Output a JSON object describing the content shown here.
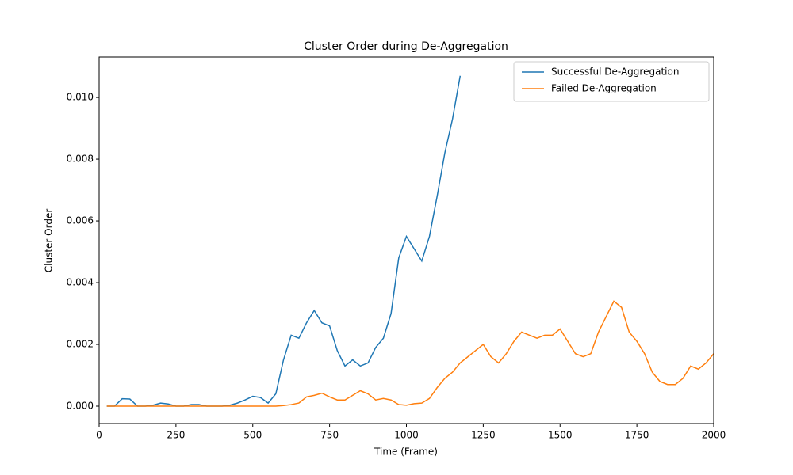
{
  "chart_data": {
    "type": "line",
    "title": "Cluster Order during De-Aggregation",
    "x_label": "Time (Frame)",
    "y_label": "Cluster Order",
    "x": [
      25,
      50,
      75,
      100,
      125,
      150,
      175,
      200,
      225,
      250,
      275,
      300,
      325,
      350,
      375,
      400,
      425,
      450,
      475,
      500,
      525,
      550,
      575,
      600,
      625,
      650,
      675,
      700,
      725,
      750,
      775,
      800,
      825,
      850,
      875,
      900,
      925,
      950,
      975,
      1000,
      1025,
      1050,
      1075,
      1100,
      1125,
      1150,
      1175,
      1200,
      1225,
      1250,
      1275,
      1300,
      1325,
      1350,
      1375,
      1400,
      1425,
      1450,
      1475,
      1500,
      1525,
      1550,
      1575,
      1600,
      1625,
      1650,
      1675,
      1700,
      1725,
      1750,
      1775,
      1800,
      1825,
      1850,
      1875,
      1900,
      1925,
      1950,
      1975,
      2000
    ],
    "series": [
      {
        "name": "Successful De-Aggregation",
        "color": "#1f77b4",
        "values": [
          0,
          0,
          0.00024,
          0.00023,
          0,
          0,
          3e-05,
          0.0001,
          7e-05,
          0,
          0,
          5e-05,
          5e-05,
          0,
          0,
          0,
          3e-05,
          0.0001,
          0.0002,
          0.00032,
          0.00028,
          0.0001,
          0.0004,
          0.0015,
          0.0023,
          0.0022,
          0.0027,
          0.0031,
          0.0027,
          0.0026,
          0.0018,
          0.0013,
          0.0015,
          0.0013,
          0.0014,
          0.0019,
          0.0022,
          0.003,
          0.0048,
          0.0055,
          0.0051,
          0.0047,
          0.0055,
          0.0068,
          0.0082,
          0.0093,
          0.0107,
          null,
          null,
          null,
          null,
          null,
          null,
          null,
          null,
          null,
          null,
          null,
          null,
          null,
          null,
          null,
          null,
          null,
          null,
          null,
          null,
          null,
          null,
          null,
          null,
          null,
          null,
          null,
          null,
          null,
          null,
          null,
          null,
          null
        ]
      },
      {
        "name": "Failed De-Aggregation",
        "color": "#ff7f0e",
        "values": [
          0,
          0,
          0,
          0,
          0,
          0,
          0,
          0,
          0,
          0,
          0,
          0,
          0,
          0,
          0,
          0,
          0,
          0,
          0,
          0,
          0,
          0,
          0,
          2e-05,
          5e-05,
          0.0001,
          0.0003,
          0.00035,
          0.00042,
          0.0003,
          0.0002,
          0.0002,
          0.00035,
          0.0005,
          0.0004,
          0.0002,
          0.00025,
          0.0002,
          5e-05,
          3e-05,
          8e-05,
          0.0001,
          0.00025,
          0.0006,
          0.0009,
          0.0011,
          0.0014,
          0.0016,
          0.0018,
          0.002,
          0.0016,
          0.0014,
          0.0017,
          0.0021,
          0.0024,
          0.0023,
          0.0022,
          0.0023,
          0.0023,
          0.0025,
          0.0021,
          0.0017,
          0.0016,
          0.0017,
          0.0024,
          0.0029,
          0.0034,
          0.0032,
          0.0024,
          0.0021,
          0.0017,
          0.0011,
          0.0008,
          0.0007,
          0.0007,
          0.0009,
          0.0013,
          0.0012,
          0.0014,
          0.0017
        ]
      }
    ],
    "xlim": [
      0,
      2000
    ],
    "xticks": [
      0,
      250,
      500,
      750,
      1000,
      1250,
      1500,
      1750,
      2000
    ],
    "ylim": [
      -0.000564,
      0.01131
    ],
    "yticks": [
      {
        "value": 0,
        "label": "0.000"
      },
      {
        "value": 0.002,
        "label": "0.002"
      },
      {
        "value": 0.004,
        "label": "0.004"
      },
      {
        "value": 0.006,
        "label": "0.006"
      },
      {
        "value": 0.008,
        "label": "0.008"
      },
      {
        "value": 0.01,
        "label": "0.010"
      }
    ],
    "grid": false,
    "legend": "upper right"
  }
}
